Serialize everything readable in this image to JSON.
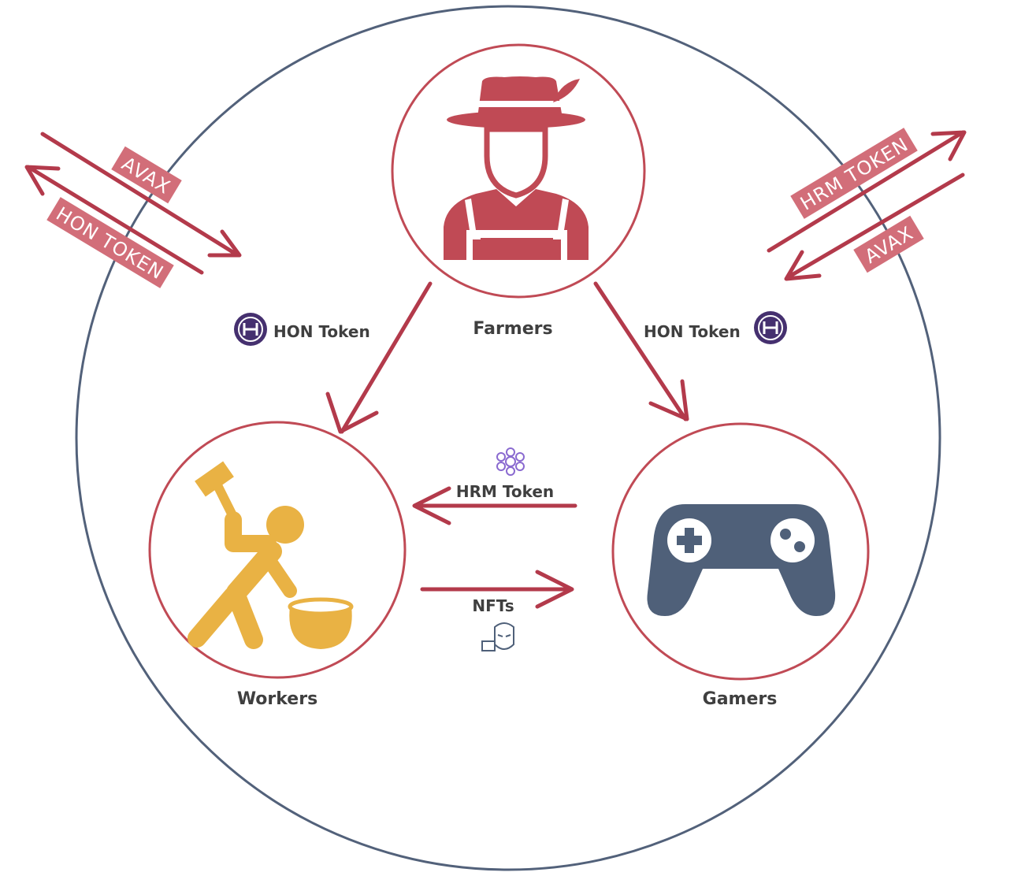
{
  "colors": {
    "outer_ring": "#52617a",
    "node_ring": "#c04a55",
    "arrow": "#b33a4b",
    "tag_fill": "#d26e79",
    "farmer": "#c04a55",
    "worker": "#e9b244",
    "gamepad": "#4f6079",
    "hon_coin": "#45306f",
    "hrm_flower": "#8a6ad0"
  },
  "nodes": {
    "farmers": {
      "label": "Farmers",
      "icon": "farmer-icon"
    },
    "workers": {
      "label": "Workers",
      "icon": "worker-icon"
    },
    "gamers": {
      "label": "Gamers",
      "icon": "gamepad-icon"
    }
  },
  "flows": {
    "farmers_to_workers": {
      "label": "HON Token",
      "icon": "hon-coin-icon"
    },
    "farmers_to_gamers": {
      "label": "HON Token",
      "icon": "hon-coin-icon"
    },
    "gamers_to_workers": {
      "label": "HRM Token",
      "icon": "hrm-flower-icon"
    },
    "workers_to_gamers": {
      "label": "NFTs",
      "icon": "nft-mask-icon"
    }
  },
  "external": {
    "left": {
      "outgoing": "AVAX",
      "incoming": "HON TOKEN"
    },
    "right": {
      "outgoing": "HRM TOKEN",
      "incoming": "AVAX"
    }
  }
}
